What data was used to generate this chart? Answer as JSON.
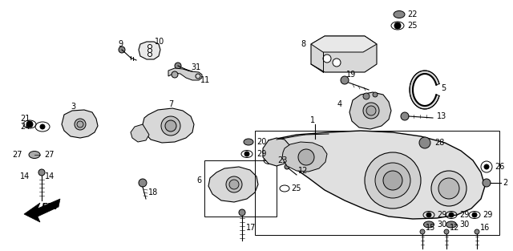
{
  "bg_color": "#ffffff",
  "fig_width": 6.4,
  "fig_height": 3.13,
  "dpi": 100
}
